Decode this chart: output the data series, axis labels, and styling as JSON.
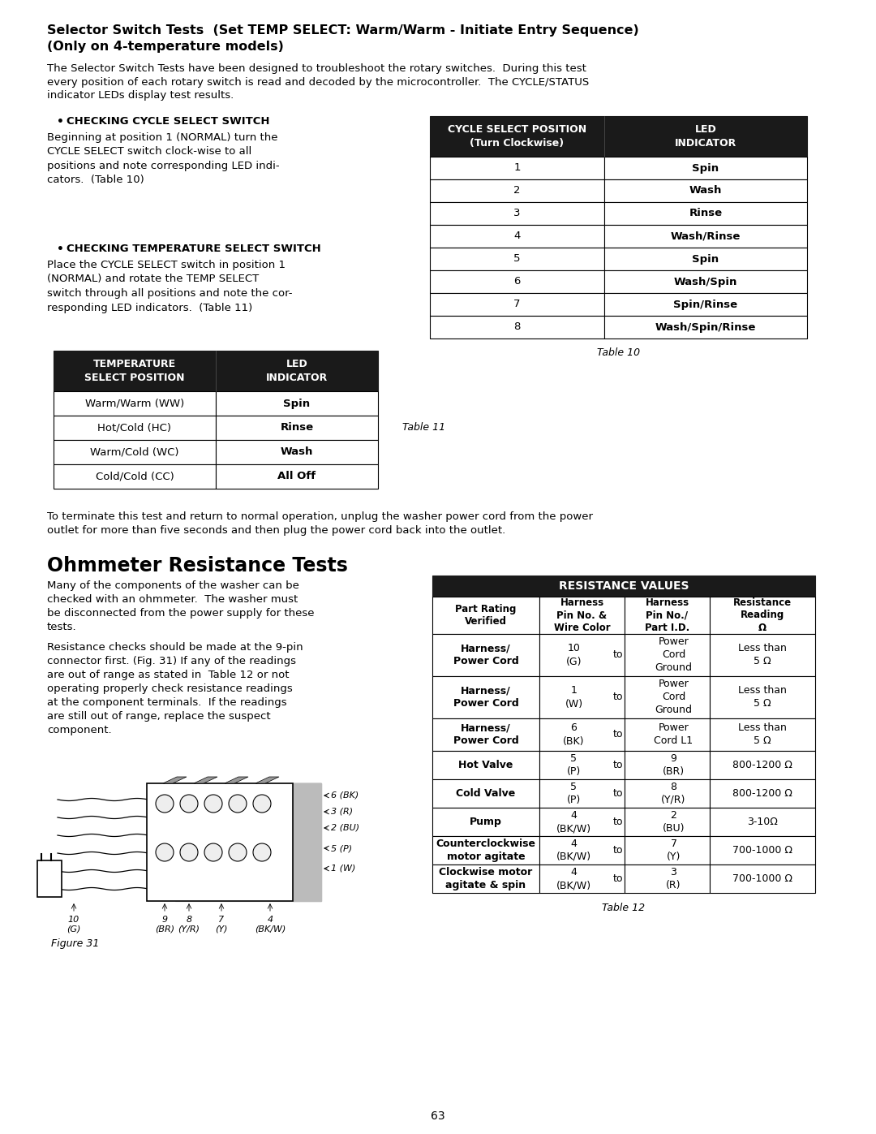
{
  "page_bg": "#ffffff",
  "page_number": "63",
  "section_title_line1": "Selector Switch Tests  (Set TEMP SELECT: Warm/Warm - Initiate Entry Sequence)",
  "section_title_line2": "(Only on 4-temperature models)",
  "para1_lines": [
    "The Selector Switch Tests have been designed to troubleshoot the rotary switches.  During this test",
    "every position of each rotary switch is read and decoded by the microcontroller.  The CYCLE/STATUS",
    "indicator LEDs display test results."
  ],
  "bullet1_title": "CHECKING CYCLE SELECT SWITCH",
  "bullet1_lines": [
    "Beginning at position 1 (NORMAL) turn the",
    "CYCLE SELECT switch clock-wise to all",
    "positions and note corresponding LED indi-",
    "cators.  (Table 10)"
  ],
  "table10_header": [
    "CYCLE SELECT POSITION\n(Turn Clockwise)",
    "LED\nINDICATOR"
  ],
  "table10_rows": [
    [
      "1",
      "Spin"
    ],
    [
      "2",
      "Wash"
    ],
    [
      "3",
      "Rinse"
    ],
    [
      "4",
      "Wash/Rinse"
    ],
    [
      "5",
      "Spin"
    ],
    [
      "6",
      "Wash/Spin"
    ],
    [
      "7",
      "Spin/Rinse"
    ],
    [
      "8",
      "Wash/Spin/Rinse"
    ]
  ],
  "table10_caption": "Table 10",
  "bullet2_title": "CHECKING TEMPERATURE SELECT SWITCH",
  "bullet2_lines": [
    "Place the CYCLE SELECT switch in position 1",
    "(NORMAL) and rotate the TEMP SELECT",
    "switch through all positions and note the cor-",
    "responding LED indicators.  (Table 11)"
  ],
  "table11_header": [
    "TEMPERATURE\nSELECT POSITION",
    "LED\nINDICATOR"
  ],
  "table11_rows": [
    [
      "Warm/Warm (WW)",
      "Spin"
    ],
    [
      "Hot/Cold (HC)",
      "Rinse"
    ],
    [
      "Warm/Cold (WC)",
      "Wash"
    ],
    [
      "Cold/Cold (CC)",
      "All Off"
    ]
  ],
  "table11_caption": "Table 11",
  "para2_lines": [
    "To terminate this test and return to normal operation, unplug the washer power cord from the power",
    "outlet for more than five seconds and then plug the power cord back into the outlet."
  ],
  "ohmmeter_title": "Ohmmeter Resistance Tests",
  "ohm_para1_lines": [
    "Many of the components of the washer can be",
    "checked with an ohmmeter.  The washer must",
    "be disconnected from the power supply for these",
    "tests."
  ],
  "ohm_para2_lines": [
    "Resistance checks should be made at the 9-pin",
    "connector first. (Fig. 31) If any of the readings",
    "are out of range as stated in  Table 12 or not",
    "operating properly check resistance readings",
    "at the component terminals.  If the readings",
    "are still out of range, replace the suspect",
    "component."
  ],
  "figure31_caption": "Figure 31",
  "table12_main_header": "RESISTANCE VALUES",
  "table12_col_headers": [
    "Part Rating\nVerified",
    "Harness\nPin No. &\nWire Color",
    "Harness\nPin No./\nPart I.D.",
    "Resistance\nReading\nΩ"
  ],
  "table12_rows": [
    [
      "Harness/\nPower Cord",
      "10\n(G)",
      "to",
      "Power\nCord\nGround",
      "Less than\n5 Ω"
    ],
    [
      "Harness/\nPower Cord",
      "1\n(W)",
      "to",
      "Power\nCord\nGround",
      "Less than\n5 Ω"
    ],
    [
      "Harness/\nPower Cord",
      "6\n(BK)",
      "to",
      "Power\nCord L1",
      "Less than\n5 Ω"
    ],
    [
      "Hot Valve",
      "5\n(P)",
      "to",
      "9\n(BR)",
      "800-1200 Ω"
    ],
    [
      "Cold Valve",
      "5\n(P)",
      "to",
      "8\n(Y/R)",
      "800-1200 Ω"
    ],
    [
      "Pump",
      "4\n(BK/W)",
      "to",
      "2\n(BU)",
      "3-10Ω"
    ],
    [
      "Counterclockwise\nmotor agitate",
      "4\n(BK/W)",
      "to",
      "7\n(Y)",
      "700-1000 Ω"
    ],
    [
      "Clockwise motor\nagitate & spin",
      "4\n(BK/W)",
      "to",
      "3\n(R)",
      "700-1000 Ω"
    ]
  ],
  "table12_caption": "Table 12",
  "header_bg": "#1a1a1a",
  "header_fg": "#ffffff"
}
